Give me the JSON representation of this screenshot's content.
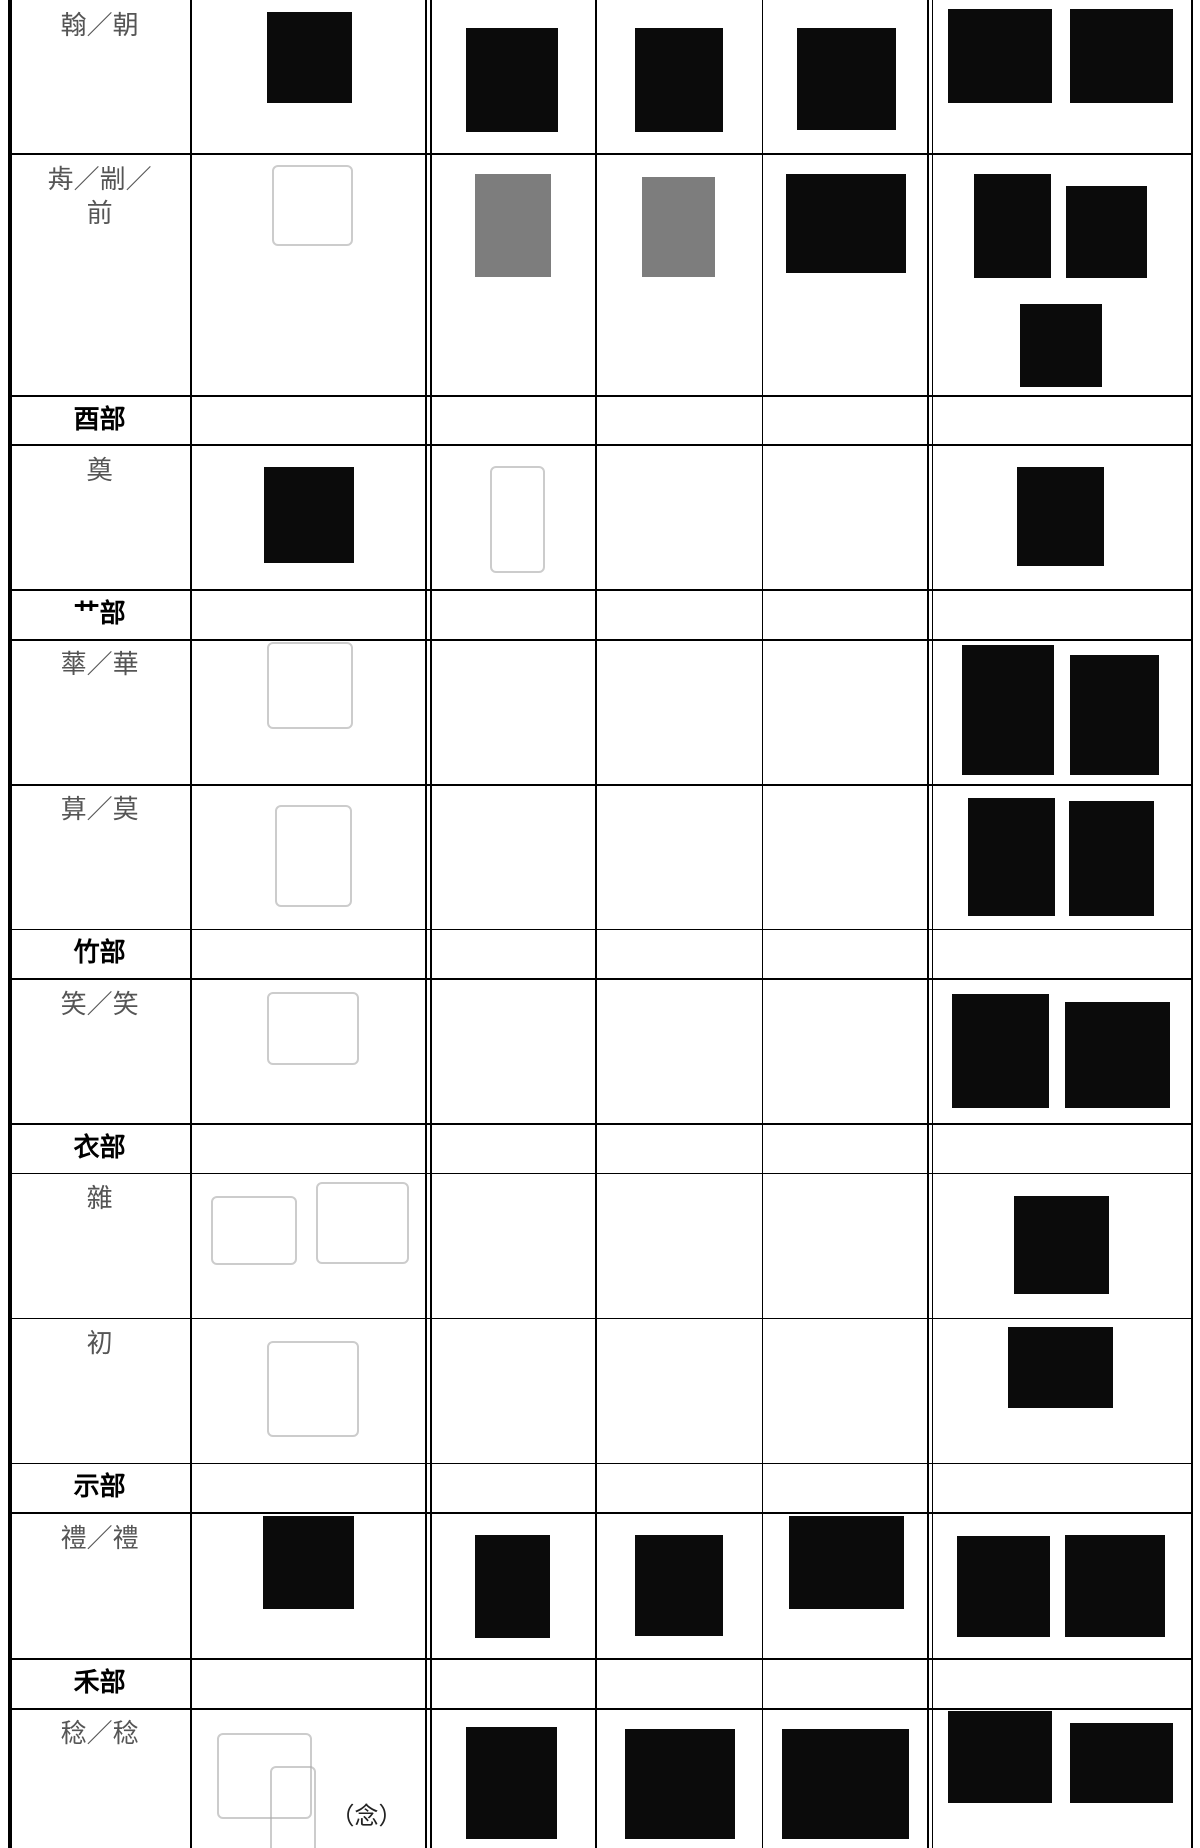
{
  "table": {
    "rows": [
      {
        "label": "翰／朝"
      },
      {
        "label": "歬／剬／前"
      },
      {
        "label": "酉部",
        "section": true
      },
      {
        "label": "奠"
      },
      {
        "label": "艹部",
        "section": true
      },
      {
        "label": "蕐／華"
      },
      {
        "label": "萛／莫"
      },
      {
        "label": "竹部",
        "section": true
      },
      {
        "label": "笑／笑"
      },
      {
        "label": "衣部",
        "section": true
      },
      {
        "label": "雜"
      },
      {
        "label": "初"
      },
      {
        "label": "示部",
        "section": true
      },
      {
        "label": "禮／禮"
      },
      {
        "label": "禾部",
        "section": true
      },
      {
        "label": "稔／稔",
        "annotation": "（念）"
      }
    ]
  }
}
